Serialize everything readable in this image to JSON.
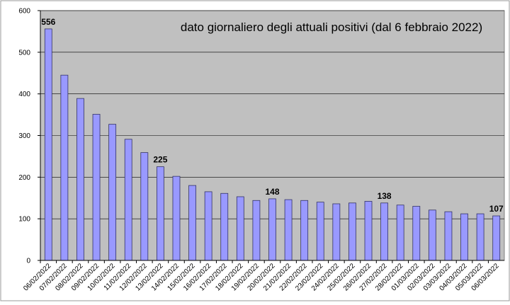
{
  "chart_data": {
    "type": "bar",
    "title": "dato giornaliero degli attuali positivi (dal 6 febbraio 2022)",
    "categories": [
      "06/02/2022",
      "07/02/2022",
      "08/02/2022",
      "09/02/2022",
      "10/02/2022",
      "11/02/2022",
      "12/02/2022",
      "13/02/2022",
      "14/02/2022",
      "15/02/2022",
      "16/02/2022",
      "17/02/2022",
      "18/02/2022",
      "19/02/2022",
      "20/02/2022",
      "21/02/2022",
      "22/02/2022",
      "23/02/2022",
      "24/02/2022",
      "25/02/2022",
      "26/02/2022",
      "27/02/2022",
      "28/02/2022",
      "01/03/2022",
      "02/03/2022",
      "03/03/2022",
      "04/03/2022",
      "05/03/2022",
      "06/03/2022"
    ],
    "values": [
      556,
      445,
      389,
      351,
      327,
      291,
      259,
      225,
      202,
      180,
      165,
      161,
      153,
      144,
      148,
      146,
      144,
      140,
      136,
      138,
      142,
      138,
      133,
      130,
      121,
      117,
      112,
      112,
      107
    ],
    "value_labels": [
      "556",
      null,
      null,
      null,
      null,
      null,
      null,
      "225",
      null,
      null,
      null,
      null,
      null,
      null,
      "148",
      null,
      null,
      null,
      null,
      null,
      null,
      "138",
      null,
      null,
      null,
      null,
      null,
      null,
      "107"
    ],
    "color": "#9999ff",
    "ylim": [
      0,
      600
    ],
    "yticks": [
      0,
      100,
      200,
      300,
      400,
      500,
      600
    ],
    "grid": true
  }
}
